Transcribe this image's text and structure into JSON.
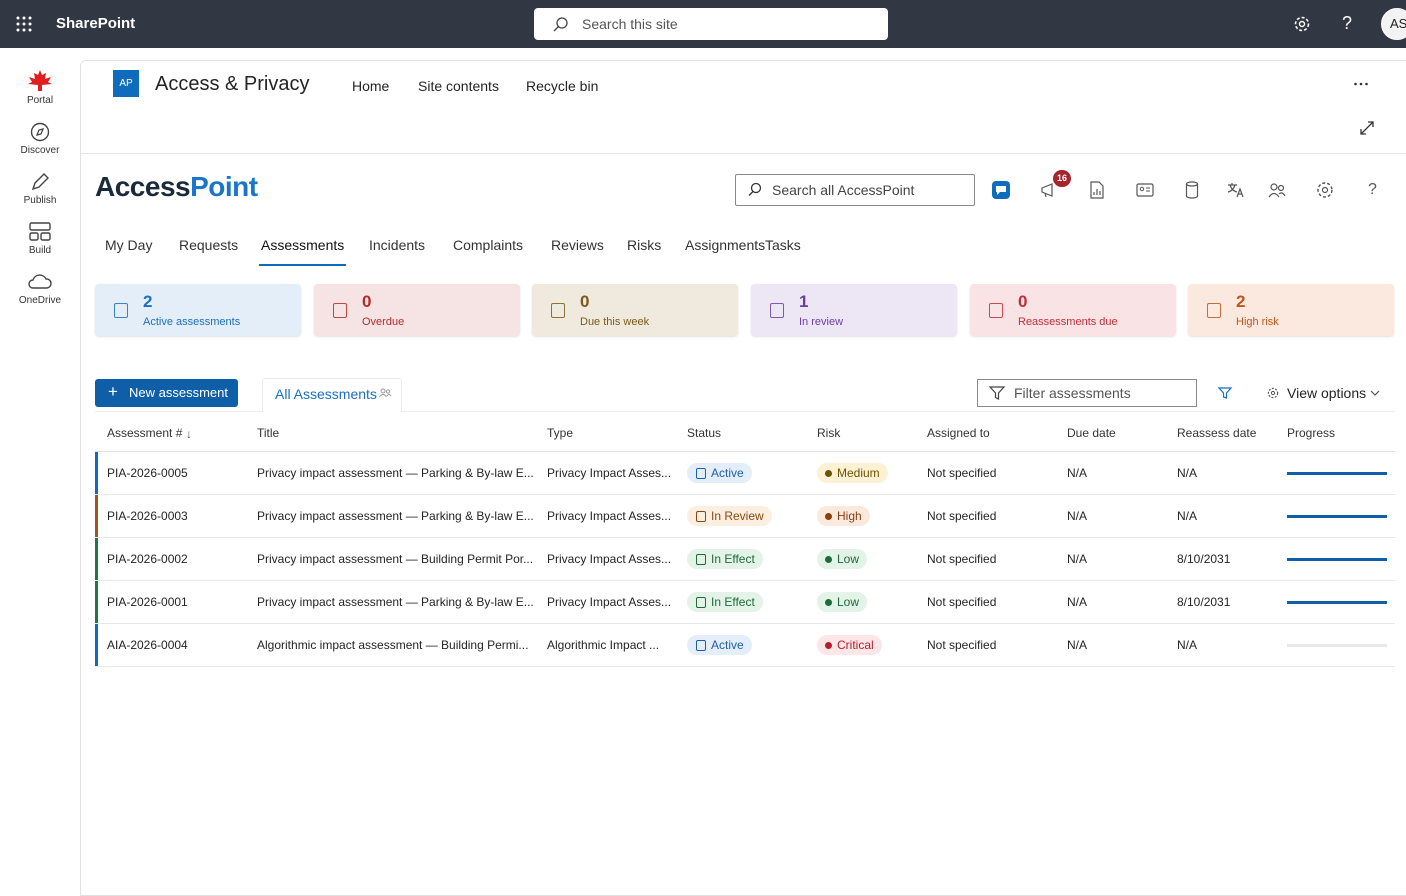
{
  "topbar": {
    "app_name": "SharePoint",
    "search_placeholder": "Search this site",
    "avatar": "AS"
  },
  "rail": [
    "Portal",
    "Discover",
    "Publish",
    "Build",
    "OneDrive"
  ],
  "site": {
    "logo": "AP",
    "title": "Access & Privacy",
    "nav": [
      "Home",
      "Site contents",
      "Recycle bin"
    ]
  },
  "app": {
    "brand": [
      "Access",
      "Point"
    ],
    "search_placeholder": "Search all AccessPoint",
    "notification_count": 16,
    "tabs": [
      "My Day",
      "Requests",
      "Assessments",
      "Incidents",
      "Complaints",
      "Reviews",
      "Risks",
      "Assignments",
      "Tasks"
    ],
    "active_tab": 2
  },
  "cards": [
    {
      "value": 2,
      "label": "Active assessments",
      "color": "#1b6ec2",
      "background": "#e3eef9"
    },
    {
      "value": 0,
      "label": "Overdue",
      "color": "#b52a2a",
      "background": "#f6e3e4"
    },
    {
      "value": 0,
      "label": "Due this week",
      "color": "#7a5a1a",
      "background": "#efe9de"
    },
    {
      "value": 1,
      "label": "In review",
      "color": "#6b3fa0",
      "background": "#ece6f5"
    },
    {
      "value": 0,
      "label": "Reassessments due",
      "color": "#c0303a",
      "background": "#f9e3e5"
    },
    {
      "value": 2,
      "label": "High risk",
      "color": "#c0561a",
      "background": "#fbe8de"
    }
  ],
  "toolbar": {
    "new_button": "New assessment",
    "view_tab": "All Assessments",
    "filter_placeholder": "Filter assessments",
    "view_options": "View options"
  },
  "table": {
    "columns": [
      "Assessment #",
      "Title",
      "Type",
      "Status",
      "Risk",
      "Assigned to",
      "Due date",
      "Reassess date",
      "Progress"
    ],
    "progress_range": [
      0,
      100
    ],
    "rows": [
      {
        "id": "PIA-2026-0005",
        "title": "Privacy impact assessment — Parking & By-law E...",
        "type": "Privacy Impact Asses...",
        "status": {
          "label": "Active",
          "color": "#1f5fa8",
          "background": "#e3eefa"
        },
        "risk": {
          "label": "Medium",
          "color": "#6e5200",
          "background": "#fcf1d2"
        },
        "assigned_to": "Not specified",
        "due_date": "N/A",
        "reassess_date": "N/A",
        "progress": 100,
        "accent": "#0f6cbd"
      },
      {
        "id": "PIA-2026-0003",
        "title": "Privacy impact assessment — Parking & By-law E...",
        "type": "Privacy Impact Asses...",
        "status": {
          "label": "In Review",
          "color": "#8a4a0d",
          "background": "#fcefe2"
        },
        "risk": {
          "label": "High",
          "color": "#8a3f10",
          "background": "#fbe9dd"
        },
        "assigned_to": "Not specified",
        "due_date": "N/A",
        "reassess_date": "N/A",
        "progress": 100,
        "accent": "#a0561a"
      },
      {
        "id": "PIA-2026-0002",
        "title": "Privacy impact assessment — Building Permit Por...",
        "type": "Privacy Impact Asses...",
        "status": {
          "label": "In Effect",
          "color": "#1e6b3a",
          "background": "#e3f3e8"
        },
        "risk": {
          "label": "Low",
          "color": "#1e6b3a",
          "background": "#e3f3e8"
        },
        "assigned_to": "Not specified",
        "due_date": "N/A",
        "reassess_date": "8/10/2031",
        "progress": 100,
        "accent": "#1e7a45"
      },
      {
        "id": "PIA-2026-0001",
        "title": "Privacy impact assessment — Parking & By-law E...",
        "type": "Privacy Impact Asses...",
        "status": {
          "label": "In Effect",
          "color": "#1e6b3a",
          "background": "#e3f3e8"
        },
        "risk": {
          "label": "Low",
          "color": "#1e6b3a",
          "background": "#e3f3e8"
        },
        "assigned_to": "Not specified",
        "due_date": "N/A",
        "reassess_date": "8/10/2031",
        "progress": 100,
        "accent": "#1e7a45"
      },
      {
        "id": "AIA-2026-0004",
        "title": "Algorithmic impact assessment — Building Permi...",
        "type": "Algorithmic Impact ...",
        "status": {
          "label": "Active",
          "color": "#1f5fa8",
          "background": "#e3eefa"
        },
        "risk": {
          "label": "Critical",
          "color": "#b3202c",
          "background": "#fde6e8"
        },
        "assigned_to": "Not specified",
        "due_date": "N/A",
        "reassess_date": "N/A",
        "progress": 0,
        "accent": "#0f6cbd"
      }
    ]
  }
}
